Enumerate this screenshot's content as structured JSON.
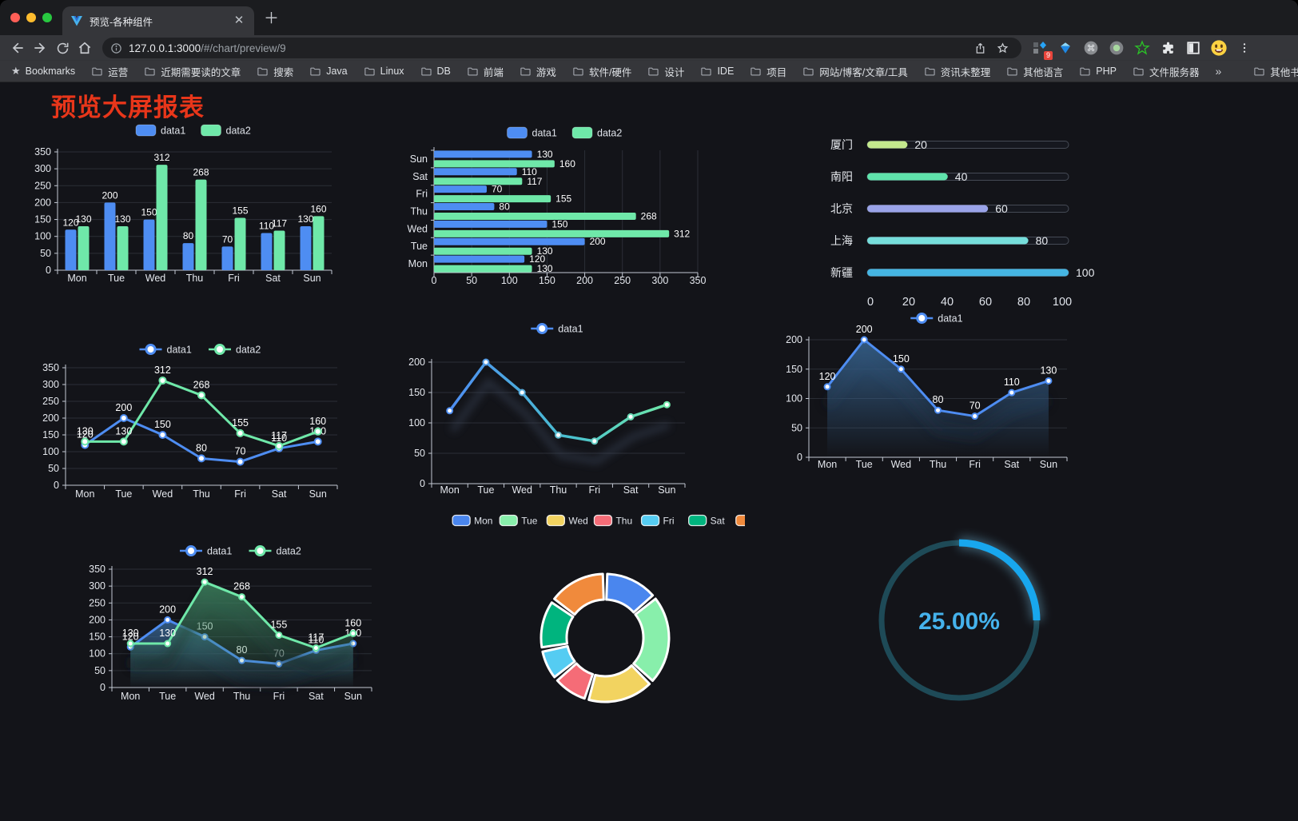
{
  "browser": {
    "tab_title": "预览-各种组件",
    "url_host": "127.0.0.1:3000",
    "url_path": "/#/chart/preview/9",
    "extension_badge": "9",
    "bookmarks_root": "Bookmarks",
    "bookmark_folders": [
      "运营",
      "近期需要读的文章",
      "搜索",
      "Java",
      "Linux",
      "DB",
      "前端",
      "游戏",
      "软件/硬件",
      "设计",
      "IDE",
      "项目",
      "网站/博客/文章/工具",
      "资讯未整理",
      "其他语言",
      "PHP",
      "文件服务器"
    ],
    "overflow": "»",
    "other_bookmarks": "其他书签"
  },
  "page": {
    "title": "预览大屏报表"
  },
  "chart_data": [
    {
      "id": "grouped-bar-chart",
      "type": "bar",
      "categories": [
        "Mon",
        "Tue",
        "Wed",
        "Thu",
        "Fri",
        "Sat",
        "Sun"
      ],
      "series": [
        {
          "name": "data1",
          "color": "#4e8df2",
          "values": [
            120,
            200,
            150,
            80,
            70,
            110,
            130
          ]
        },
        {
          "name": "data2",
          "color": "#6fe8a9",
          "values": [
            130,
            130,
            312,
            268,
            155,
            117,
            160
          ]
        }
      ],
      "ylim": [
        0,
        350
      ],
      "yticks": [
        0,
        50,
        100,
        150,
        200,
        250,
        300,
        350
      ],
      "legend_position": "top",
      "grid": true
    },
    {
      "id": "horizontal-bar-chart",
      "type": "bar-horizontal",
      "categories": [
        "Mon",
        "Tue",
        "Wed",
        "Thu",
        "Fri",
        "Sat",
        "Sun"
      ],
      "series": [
        {
          "name": "data1",
          "color": "#4e8df2",
          "values": [
            120,
            200,
            150,
            80,
            70,
            110,
            130
          ]
        },
        {
          "name": "data2",
          "color": "#6fe8a9",
          "values": [
            130,
            130,
            312,
            268,
            155,
            117,
            160
          ]
        }
      ],
      "xlim": [
        0,
        350
      ],
      "xticks": [
        0,
        50,
        100,
        150,
        200,
        250,
        300,
        350
      ],
      "legend_position": "top",
      "grid": true
    },
    {
      "id": "city-progress-chart",
      "type": "progress",
      "max": 100,
      "xticks": [
        0,
        20,
        40,
        60,
        80,
        100
      ],
      "rows": [
        {
          "label": "厦门",
          "value": 20,
          "color": "#c3e88d"
        },
        {
          "label": "南阳",
          "value": 40,
          "color": "#5fe3ab"
        },
        {
          "label": "北京",
          "value": 60,
          "color": "#9aa3e8"
        },
        {
          "label": "上海",
          "value": 80,
          "color": "#76dedb"
        },
        {
          "label": "新疆",
          "value": 100,
          "color": "#45b5e2"
        }
      ]
    },
    {
      "id": "dual-line-chart",
      "type": "line",
      "categories": [
        "Mon",
        "Tue",
        "Wed",
        "Thu",
        "Fri",
        "Sat",
        "Sun"
      ],
      "series": [
        {
          "name": "data1",
          "color": "#4e8df2",
          "values": [
            120,
            200,
            150,
            80,
            70,
            110,
            130
          ]
        },
        {
          "name": "data2",
          "color": "#6fe8a9",
          "values": [
            130,
            130,
            312,
            268,
            155,
            117,
            160
          ]
        }
      ],
      "ylim": [
        0,
        350
      ],
      "yticks": [
        0,
        50,
        100,
        150,
        200,
        250,
        300,
        350
      ],
      "legend_position": "top",
      "grid": true
    },
    {
      "id": "gradient-line-chart",
      "type": "line-gradient",
      "categories": [
        "Mon",
        "Tue",
        "Wed",
        "Thu",
        "Fri",
        "Sat",
        "Sun"
      ],
      "series": [
        {
          "name": "data1",
          "color_start": "#4e8df2",
          "color_end": "#6fe8a9",
          "values": [
            120,
            200,
            150,
            80,
            70,
            110,
            130
          ]
        }
      ],
      "ylim": [
        0,
        200
      ],
      "yticks": [
        0,
        50,
        100,
        150,
        200
      ],
      "legend_position": "top",
      "grid": true
    },
    {
      "id": "single-area-chart",
      "type": "area",
      "categories": [
        "Mon",
        "Tue",
        "Wed",
        "Thu",
        "Fri",
        "Sat",
        "Sun"
      ],
      "series": [
        {
          "name": "data1",
          "color": "#4e8df2",
          "fill": "#3a6b9b",
          "values": [
            120,
            200,
            150,
            80,
            70,
            110,
            130
          ]
        }
      ],
      "ylim": [
        0,
        200
      ],
      "yticks": [
        0,
        50,
        100,
        150,
        200
      ],
      "legend_position": "top",
      "grid": true
    },
    {
      "id": "dual-area-chart",
      "type": "area",
      "categories": [
        "Mon",
        "Tue",
        "Wed",
        "Thu",
        "Fri",
        "Sat",
        "Sun"
      ],
      "series": [
        {
          "name": "data1",
          "color": "#4e8df2",
          "fill": "#3a6b9b",
          "values": [
            120,
            200,
            150,
            80,
            70,
            110,
            130
          ]
        },
        {
          "name": "data2",
          "color": "#6fe8a9",
          "fill": "#3f8a63",
          "values": [
            130,
            130,
            312,
            268,
            155,
            117,
            160
          ]
        }
      ],
      "ylim": [
        0,
        350
      ],
      "yticks": [
        0,
        50,
        100,
        150,
        200,
        250,
        300,
        350
      ],
      "legend_position": "top",
      "grid": true
    },
    {
      "id": "donut-chart",
      "type": "donut",
      "labels": [
        "Mon",
        "Tue",
        "Wed",
        "Thu",
        "Fri",
        "Sat",
        "Sun"
      ],
      "values": [
        120,
        200,
        150,
        80,
        70,
        110,
        130
      ],
      "colors": [
        "#4a86ee",
        "#88efab",
        "#f2d360",
        "#f56c77",
        "#55ccf2",
        "#00b47e",
        "#f08a3c"
      ],
      "legend_position": "top"
    },
    {
      "id": "gauge-chart",
      "type": "gauge",
      "value": 25,
      "max": 100,
      "label": "25.00%",
      "arc_color": "#18a7ee",
      "track_color": "#1e4a57",
      "text_color": "#45b2ec"
    }
  ]
}
